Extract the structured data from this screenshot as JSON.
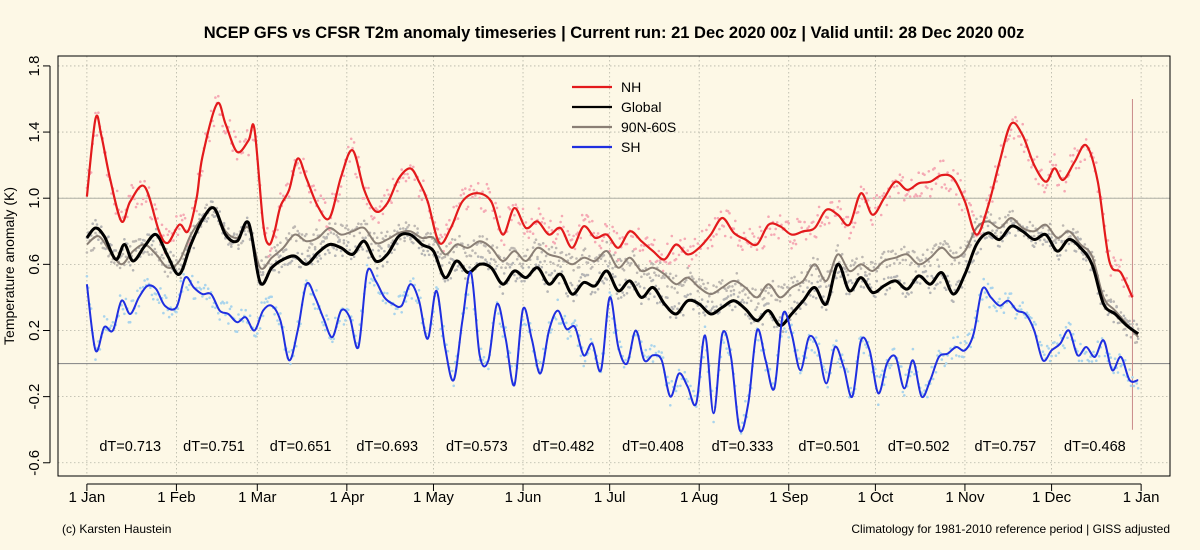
{
  "chart_data": {
    "type": "line",
    "title": "NCEP GFS vs CFSR T2m anomaly timeseries | Current run: 21 Dec 2020 00z | Valid until: 28 Dec 2020 00z",
    "ylabel": "Temperature anomaly (K)",
    "xlabel": "",
    "ylim": [
      -0.68,
      1.86
    ],
    "xlim": [
      -10,
      375
    ],
    "yticks": [
      -0.6,
      -0.2,
      0.2,
      0.6,
      1.0,
      1.4,
      1.8
    ],
    "ytick_labels": [
      "-0.6",
      "-0.2",
      "0.2",
      "0.6",
      "1.0",
      "1.4",
      "1.8"
    ],
    "xticks": [
      0,
      31,
      59,
      90,
      120,
      151,
      181,
      212,
      243,
      273,
      304,
      334,
      365
    ],
    "xtick_labels": [
      "1 Jan",
      "1 Feb",
      "1 Mar",
      "1 Apr",
      "1 May",
      "1 Jun",
      "1 Jul",
      "1 Aug",
      "1 Sep",
      "1 Oct",
      "1 Nov",
      "1 Dec",
      "1 Jan"
    ],
    "x_units": "day of year 2020 (0 = 1 Jan)",
    "grid": true,
    "zero_line": 0,
    "valid_until_marker_x": 362,
    "legend": {
      "placement": "top-center",
      "entries": [
        {
          "name": "NH",
          "color": "#e31a1c"
        },
        {
          "name": "Global",
          "color": "#000000"
        },
        {
          "name": "90N-60S",
          "color": "#8a7f75"
        },
        {
          "name": "SH",
          "color": "#1f2fe0"
        }
      ]
    },
    "series": [
      {
        "name": "NH",
        "color": "#e31a1c",
        "point_color": "#f5a9b4",
        "x": [
          0,
          3,
          5,
          8,
          12,
          15,
          20,
          25,
          28,
          32,
          35,
          38,
          40,
          45,
          48,
          52,
          56,
          58,
          61,
          63,
          65,
          67,
          70,
          73,
          76,
          80,
          84,
          88,
          92,
          96,
          100,
          104,
          108,
          112,
          115,
          118,
          122,
          126,
          130,
          135,
          140,
          144,
          148,
          152,
          156,
          160,
          164,
          168,
          172,
          176,
          180,
          184,
          188,
          192,
          196,
          200,
          204,
          208,
          212,
          216,
          220,
          224,
          228,
          232,
          236,
          240,
          244,
          248,
          252,
          256,
          260,
          264,
          268,
          272,
          276,
          280,
          284,
          288,
          292,
          296,
          300,
          304,
          308,
          312,
          316,
          320,
          324,
          328,
          332,
          335,
          338,
          342,
          346,
          350,
          354,
          358,
          362
        ],
        "values": [
          1.01,
          1.48,
          1.38,
          1.12,
          0.86,
          0.98,
          1.07,
          0.8,
          0.73,
          0.84,
          0.8,
          1.0,
          1.25,
          1.57,
          1.45,
          1.28,
          1.35,
          1.42,
          0.85,
          0.72,
          0.8,
          0.95,
          1.05,
          1.24,
          1.12,
          0.95,
          0.88,
          1.13,
          1.29,
          1.05,
          0.92,
          0.97,
          1.12,
          1.18,
          1.1,
          0.98,
          0.73,
          0.82,
          0.98,
          1.03,
          0.98,
          0.78,
          0.94,
          0.82,
          0.86,
          0.78,
          0.82,
          0.7,
          0.83,
          0.76,
          0.78,
          0.7,
          0.8,
          0.74,
          0.68,
          0.63,
          0.72,
          0.66,
          0.7,
          0.78,
          0.88,
          0.79,
          0.75,
          0.72,
          0.84,
          0.83,
          0.78,
          0.8,
          0.82,
          0.93,
          0.9,
          0.84,
          1.03,
          0.9,
          1.0,
          1.1,
          1.05,
          1.09,
          1.1,
          1.14,
          1.12,
          0.98,
          0.78,
          0.95,
          1.22,
          1.45,
          1.38,
          1.2,
          1.1,
          1.18,
          1.11,
          1.22,
          1.32,
          1.1,
          0.62,
          0.55,
          0.4
        ]
      },
      {
        "name": "Global",
        "color": "#000000",
        "point_color": "#b5b5b5",
        "x": [
          0,
          3,
          6,
          10,
          13,
          16,
          20,
          24,
          28,
          32,
          36,
          40,
          44,
          48,
          52,
          56,
          60,
          64,
          68,
          72,
          76,
          80,
          84,
          88,
          92,
          96,
          100,
          104,
          108,
          112,
          116,
          120,
          124,
          128,
          132,
          136,
          140,
          144,
          148,
          152,
          156,
          160,
          164,
          168,
          172,
          176,
          180,
          184,
          188,
          192,
          196,
          200,
          204,
          208,
          212,
          216,
          220,
          224,
          228,
          232,
          236,
          240,
          244,
          248,
          252,
          256,
          260,
          264,
          268,
          272,
          276,
          280,
          284,
          288,
          292,
          296,
          300,
          304,
          308,
          312,
          316,
          320,
          324,
          328,
          332,
          336,
          340,
          344,
          348,
          352,
          356,
          360,
          364
        ],
        "values": [
          0.76,
          0.82,
          0.77,
          0.63,
          0.72,
          0.62,
          0.71,
          0.78,
          0.65,
          0.54,
          0.72,
          0.87,
          0.94,
          0.78,
          0.74,
          0.85,
          0.49,
          0.58,
          0.63,
          0.65,
          0.6,
          0.67,
          0.72,
          0.7,
          0.66,
          0.74,
          0.62,
          0.66,
          0.77,
          0.78,
          0.72,
          0.68,
          0.52,
          0.62,
          0.55,
          0.6,
          0.58,
          0.48,
          0.56,
          0.52,
          0.58,
          0.48,
          0.54,
          0.42,
          0.49,
          0.47,
          0.56,
          0.44,
          0.5,
          0.4,
          0.46,
          0.36,
          0.3,
          0.38,
          0.36,
          0.3,
          0.34,
          0.38,
          0.33,
          0.26,
          0.32,
          0.23,
          0.3,
          0.38,
          0.46,
          0.36,
          0.6,
          0.44,
          0.52,
          0.43,
          0.47,
          0.5,
          0.45,
          0.53,
          0.48,
          0.55,
          0.42,
          0.54,
          0.72,
          0.79,
          0.75,
          0.83,
          0.8,
          0.75,
          0.78,
          0.68,
          0.75,
          0.7,
          0.6,
          0.36,
          0.3,
          0.23,
          0.18
        ]
      },
      {
        "name": "90N-60S",
        "color": "#8a7f75",
        "point_color": "#bdb8b2",
        "x": [
          0,
          4,
          8,
          12,
          16,
          20,
          24,
          28,
          32,
          36,
          40,
          44,
          48,
          52,
          56,
          60,
          64,
          68,
          72,
          76,
          80,
          84,
          88,
          92,
          96,
          100,
          104,
          108,
          112,
          116,
          120,
          124,
          128,
          132,
          136,
          140,
          144,
          148,
          152,
          156,
          160,
          164,
          168,
          172,
          176,
          180,
          184,
          188,
          192,
          196,
          200,
          204,
          208,
          212,
          216,
          220,
          224,
          228,
          232,
          236,
          240,
          244,
          248,
          252,
          256,
          260,
          264,
          268,
          272,
          276,
          280,
          284,
          288,
          292,
          296,
          300,
          304,
          308,
          312,
          316,
          320,
          324,
          328,
          332,
          336,
          340,
          344,
          348,
          352,
          356,
          360,
          364
        ],
        "values": [
          0.72,
          0.77,
          0.68,
          0.6,
          0.68,
          0.72,
          0.66,
          0.58,
          0.62,
          0.78,
          0.88,
          0.94,
          0.8,
          0.76,
          0.82,
          0.58,
          0.64,
          0.7,
          0.78,
          0.74,
          0.76,
          0.82,
          0.78,
          0.8,
          0.82,
          0.73,
          0.75,
          0.79,
          0.8,
          0.76,
          0.76,
          0.66,
          0.72,
          0.7,
          0.74,
          0.7,
          0.62,
          0.68,
          0.62,
          0.7,
          0.66,
          0.64,
          0.6,
          0.64,
          0.62,
          0.68,
          0.58,
          0.64,
          0.56,
          0.58,
          0.54,
          0.48,
          0.52,
          0.46,
          0.42,
          0.46,
          0.5,
          0.46,
          0.4,
          0.48,
          0.4,
          0.46,
          0.5,
          0.6,
          0.5,
          0.66,
          0.56,
          0.6,
          0.56,
          0.62,
          0.64,
          0.66,
          0.6,
          0.64,
          0.7,
          0.64,
          0.68,
          0.82,
          0.86,
          0.82,
          0.88,
          0.82,
          0.8,
          0.84,
          0.76,
          0.8,
          0.72,
          0.65,
          0.4,
          0.32,
          0.24,
          0.16
        ]
      },
      {
        "name": "SH",
        "color": "#1f2fe0",
        "point_color": "#a9d4ec",
        "x": [
          0,
          3,
          6,
          9,
          12,
          15,
          18,
          21,
          24,
          27,
          31,
          34,
          37,
          40,
          43,
          46,
          49,
          52,
          55,
          58,
          61,
          64,
          67,
          70,
          73,
          76,
          79,
          82,
          85,
          88,
          91,
          94,
          97,
          100,
          103,
          106,
          109,
          112,
          115,
          118,
          121,
          124,
          127,
          130,
          133,
          136,
          139,
          142,
          145,
          148,
          151,
          154,
          157,
          160,
          163,
          166,
          169,
          172,
          175,
          178,
          181,
          184,
          187,
          190,
          193,
          196,
          199,
          202,
          205,
          208,
          211,
          214,
          217,
          220,
          223,
          226,
          229,
          232,
          235,
          238,
          241,
          244,
          247,
          250,
          253,
          256,
          259,
          262,
          265,
          268,
          271,
          274,
          277,
          280,
          283,
          286,
          289,
          292,
          295,
          298,
          301,
          304,
          307,
          310,
          313,
          316,
          319,
          322,
          325,
          328,
          331,
          334,
          337,
          340,
          343,
          346,
          349,
          352,
          355,
          358,
          361,
          364
        ],
        "values": [
          0.48,
          0.08,
          0.22,
          0.2,
          0.38,
          0.3,
          0.4,
          0.47,
          0.45,
          0.35,
          0.34,
          0.52,
          0.46,
          0.42,
          0.42,
          0.32,
          0.3,
          0.25,
          0.28,
          0.2,
          0.32,
          0.35,
          0.26,
          0.02,
          0.2,
          0.48,
          0.4,
          0.27,
          0.16,
          0.32,
          0.28,
          0.1,
          0.55,
          0.5,
          0.4,
          0.36,
          0.35,
          0.48,
          0.38,
          0.15,
          0.44,
          0.1,
          -0.1,
          0.26,
          0.55,
          0.05,
          0.02,
          0.36,
          0.15,
          -0.13,
          0.33,
          0.15,
          -0.06,
          0.2,
          0.32,
          0.21,
          0.22,
          0.05,
          0.12,
          -0.04,
          0.4,
          0.1,
          0.0,
          0.2,
          0.02,
          0.05,
          0.02,
          -0.2,
          -0.06,
          -0.14,
          -0.24,
          0.17,
          -0.3,
          0.18,
          0.04,
          -0.4,
          -0.24,
          0.2,
          0.02,
          -0.15,
          0.3,
          0.18,
          -0.04,
          0.16,
          0.1,
          -0.12,
          0.1,
          -0.02,
          -0.2,
          0.14,
          0.08,
          -0.18,
          0.0,
          0.04,
          -0.15,
          0.02,
          -0.2,
          -0.1,
          0.04,
          0.06,
          0.1,
          0.08,
          0.18,
          0.45,
          0.4,
          0.35,
          0.38,
          0.32,
          0.3,
          0.2,
          0.02,
          0.08,
          0.12,
          0.2,
          0.05,
          0.1,
          0.04,
          0.14,
          -0.04,
          0.04,
          -0.1,
          -0.1
        ]
      }
    ],
    "annotations": [
      {
        "x": 15,
        "text": "dT=0.713"
      },
      {
        "x": 44,
        "text": "dT=0.751"
      },
      {
        "x": 74,
        "text": "dT=0.651"
      },
      {
        "x": 104,
        "text": "dT=0.693"
      },
      {
        "x": 135,
        "text": "dT=0.573"
      },
      {
        "x": 165,
        "text": "dT=0.482"
      },
      {
        "x": 196,
        "text": "dT=0.408"
      },
      {
        "x": 227,
        "text": "dT=0.333"
      },
      {
        "x": 257,
        "text": "dT=0.501"
      },
      {
        "x": 288,
        "text": "dT=0.502"
      },
      {
        "x": 318,
        "text": "dT=0.757"
      },
      {
        "x": 349,
        "text": "dT=0.468"
      }
    ]
  },
  "footer": {
    "left": "(c) Karsten Haustein",
    "right": "Climatology for 1981-2010 reference period | GISS adjusted"
  }
}
